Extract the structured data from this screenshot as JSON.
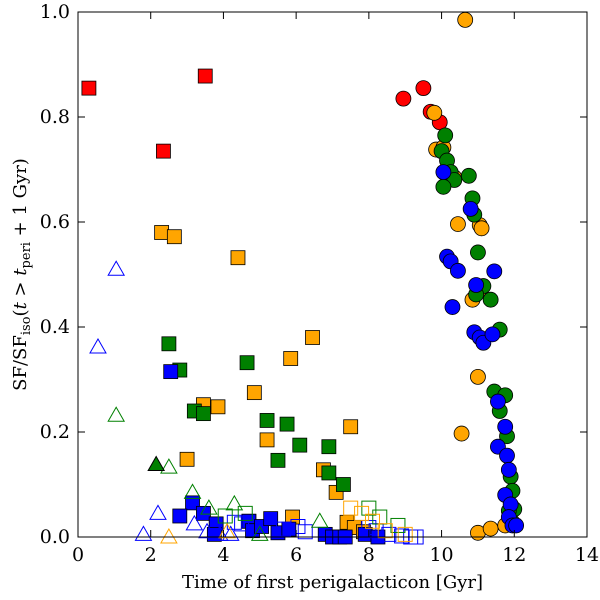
{
  "chart_data": {
    "type": "scatter",
    "xlabel": "Time of first perigalacticon [Gyr]",
    "ylabel": "SF/SF_iso(t > t_peri + 1 Gyr)",
    "xlim": [
      0,
      14
    ],
    "ylim": [
      0,
      1.0
    ],
    "x_ticks": [
      0,
      2,
      4,
      6,
      8,
      10,
      12,
      14
    ],
    "y_ticks": [
      0.0,
      0.2,
      0.4,
      0.6,
      0.8,
      1.0
    ],
    "x_tick_labels": [
      "0",
      "2",
      "4",
      "6",
      "8",
      "10",
      "12",
      "14"
    ],
    "y_tick_labels": [
      "0.0",
      "0.2",
      "0.4",
      "0.6",
      "0.8",
      "1.0"
    ],
    "grid": false,
    "colors": {
      "red": "#ff0000",
      "orange": "#ffa500",
      "green": "#008000",
      "blue": "#0000ff"
    },
    "series": [
      {
        "marker": "square-filled",
        "color": "red",
        "points": [
          [
            0.3,
            0.855
          ],
          [
            2.35,
            0.735
          ],
          [
            3.5,
            0.878
          ]
        ]
      },
      {
        "marker": "square-filled",
        "color": "orange",
        "points": [
          [
            2.3,
            0.58
          ],
          [
            2.65,
            0.572
          ],
          [
            4.4,
            0.532
          ],
          [
            6.45,
            0.38
          ],
          [
            5.85,
            0.34
          ],
          [
            4.85,
            0.275
          ],
          [
            3.45,
            0.252
          ],
          [
            3.85,
            0.248
          ],
          [
            5.2,
            0.185
          ],
          [
            7.5,
            0.21
          ],
          [
            6.75,
            0.128
          ],
          [
            7.1,
            0.085
          ],
          [
            3.0,
            0.148
          ],
          [
            5.9,
            0.038
          ],
          [
            7.4,
            0.028
          ],
          [
            7.6,
            0.018
          ],
          [
            7.85,
            0.01
          ]
        ]
      },
      {
        "marker": "square-filled",
        "color": "green",
        "points": [
          [
            2.5,
            0.368
          ],
          [
            2.8,
            0.318
          ],
          [
            4.65,
            0.332
          ],
          [
            3.2,
            0.24
          ],
          [
            3.45,
            0.235
          ],
          [
            5.2,
            0.222
          ],
          [
            5.75,
            0.215
          ],
          [
            6.1,
            0.175
          ],
          [
            6.9,
            0.172
          ],
          [
            5.5,
            0.146
          ],
          [
            6.9,
            0.122
          ],
          [
            7.3,
            0.1
          ],
          [
            4.7,
            0.03
          ]
        ]
      },
      {
        "marker": "square-filled",
        "color": "blue",
        "points": [
          [
            2.55,
            0.315
          ],
          [
            3.15,
            0.065
          ],
          [
            2.8,
            0.04
          ],
          [
            3.45,
            0.045
          ],
          [
            3.8,
            0.025
          ],
          [
            3.75,
            0.005
          ],
          [
            4.7,
            0.03
          ],
          [
            4.8,
            0.012
          ],
          [
            5.05,
            0.02
          ],
          [
            5.3,
            0.035
          ],
          [
            5.5,
            0.008
          ],
          [
            5.8,
            0.015
          ],
          [
            6.8,
            0.005
          ],
          [
            7.0,
            0.0
          ],
          [
            7.2,
            0.0
          ],
          [
            7.35,
            0.0
          ],
          [
            7.9,
            0.005
          ],
          [
            8.25,
            0.0
          ]
        ]
      },
      {
        "marker": "square-open",
        "color": "blue",
        "points": [
          [
            4.3,
            0.028
          ],
          [
            4.5,
            0.025
          ],
          [
            5.65,
            0.015
          ],
          [
            6.05,
            0.02
          ],
          [
            6.25,
            0.01
          ],
          [
            8.0,
            0.018
          ],
          [
            8.2,
            0.012
          ],
          [
            8.55,
            0.005
          ],
          [
            8.9,
            0.002
          ],
          [
            9.15,
            0.0
          ],
          [
            9.3,
            0.0
          ]
        ]
      },
      {
        "marker": "square-open",
        "color": "green",
        "points": [
          [
            4.05,
            0.04
          ],
          [
            4.6,
            0.045
          ],
          [
            8.0,
            0.055
          ],
          [
            8.3,
            0.038
          ],
          [
            8.8,
            0.022
          ]
        ]
      },
      {
        "marker": "square-open",
        "color": "orange",
        "points": [
          [
            7.5,
            0.055
          ],
          [
            7.8,
            0.045
          ],
          [
            8.1,
            0.03
          ],
          [
            8.45,
            0.012
          ],
          [
            9.0,
            0.005
          ]
        ]
      },
      {
        "marker": "triangle-open",
        "color": "blue",
        "points": [
          [
            1.05,
            0.51
          ],
          [
            0.55,
            0.362
          ],
          [
            2.2,
            0.045
          ],
          [
            1.8,
            0.005
          ],
          [
            3.2,
            0.025
          ],
          [
            3.55,
            0.01
          ],
          [
            3.9,
            0.005
          ],
          [
            4.2,
            0.005
          ]
        ]
      },
      {
        "marker": "triangle-open",
        "color": "green",
        "points": [
          [
            1.05,
            0.232
          ],
          [
            2.5,
            0.133
          ],
          [
            3.15,
            0.085
          ],
          [
            3.6,
            0.055
          ],
          [
            4.3,
            0.063
          ],
          [
            6.65,
            0.03
          ],
          [
            5.0,
            0.005
          ]
        ]
      },
      {
        "marker": "triangle-filled",
        "color": "green",
        "points": [
          [
            2.15,
            0.138
          ]
        ]
      },
      {
        "marker": "triangle-open",
        "color": "orange",
        "points": [
          [
            4.1,
            0.01
          ],
          [
            2.5,
            0.0
          ]
        ]
      },
      {
        "marker": "circle",
        "color": "red",
        "points": [
          [
            8.95,
            0.835
          ],
          [
            9.5,
            0.855
          ],
          [
            9.7,
            0.81
          ],
          [
            9.95,
            0.79
          ]
        ]
      },
      {
        "marker": "circle",
        "color": "orange",
        "points": [
          [
            10.65,
            0.985
          ],
          [
            9.8,
            0.808
          ],
          [
            9.85,
            0.738
          ],
          [
            10.05,
            0.742
          ],
          [
            10.35,
            0.685
          ],
          [
            10.45,
            0.596
          ],
          [
            11.05,
            0.594
          ],
          [
            11.1,
            0.588
          ],
          [
            10.85,
            0.452
          ],
          [
            11.0,
            0.467
          ],
          [
            11.0,
            0.305
          ],
          [
            10.55,
            0.197
          ],
          [
            11.0,
            0.008
          ],
          [
            11.35,
            0.016
          ],
          [
            11.75,
            0.022
          ]
        ]
      },
      {
        "marker": "circle",
        "color": "green",
        "points": [
          [
            10.1,
            0.765
          ],
          [
            10.0,
            0.735
          ],
          [
            10.15,
            0.717
          ],
          [
            10.25,
            0.695
          ],
          [
            10.35,
            0.68
          ],
          [
            10.05,
            0.667
          ],
          [
            10.75,
            0.688
          ],
          [
            10.85,
            0.645
          ],
          [
            10.9,
            0.614
          ],
          [
            11.0,
            0.542
          ],
          [
            11.15,
            0.478
          ],
          [
            11.35,
            0.452
          ],
          [
            10.95,
            0.462
          ],
          [
            11.6,
            0.395
          ],
          [
            11.45,
            0.277
          ],
          [
            11.75,
            0.27
          ],
          [
            11.6,
            0.24
          ],
          [
            11.8,
            0.192
          ],
          [
            11.9,
            0.115
          ],
          [
            11.95,
            0.088
          ],
          [
            12.0,
            0.053
          ],
          [
            11.85,
            0.05
          ],
          [
            11.95,
            0.028
          ]
        ]
      },
      {
        "marker": "circle",
        "color": "blue",
        "points": [
          [
            10.05,
            0.695
          ],
          [
            10.8,
            0.625
          ],
          [
            10.15,
            0.534
          ],
          [
            10.25,
            0.525
          ],
          [
            10.45,
            0.507
          ],
          [
            10.3,
            0.438
          ],
          [
            10.95,
            0.48
          ],
          [
            11.45,
            0.506
          ],
          [
            10.9,
            0.39
          ],
          [
            11.05,
            0.38
          ],
          [
            11.15,
            0.37
          ],
          [
            11.4,
            0.386
          ],
          [
            11.55,
            0.258
          ],
          [
            11.55,
            0.172
          ],
          [
            11.75,
            0.21
          ],
          [
            11.8,
            0.155
          ],
          [
            11.85,
            0.128
          ],
          [
            11.75,
            0.08
          ],
          [
            11.9,
            0.062
          ],
          [
            11.85,
            0.038
          ],
          [
            11.95,
            0.022
          ],
          [
            12.05,
            0.022
          ]
        ]
      }
    ]
  }
}
